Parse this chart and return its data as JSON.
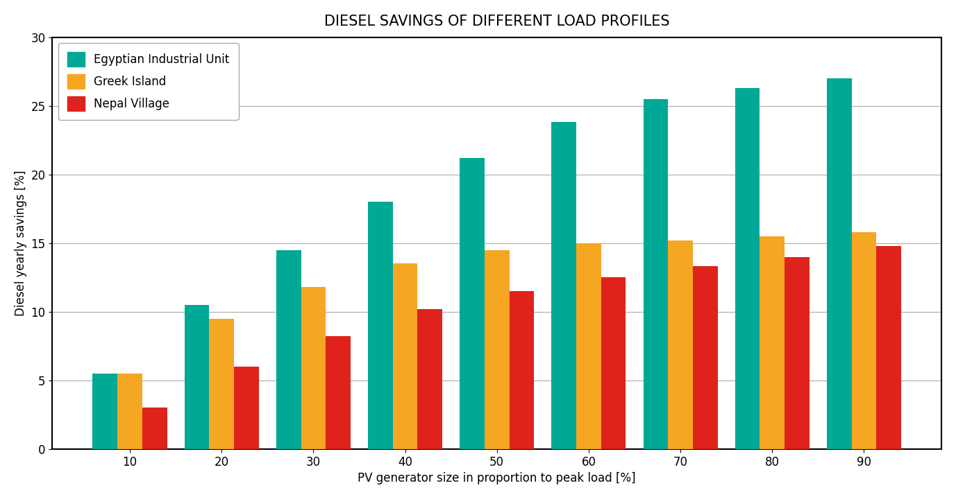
{
  "title": "DIESEL SAVINGS OF DIFFERENT LOAD PROFILES",
  "xlabel": "PV generator size in proportion to peak load [%]",
  "ylabel": "Diesel yearly savings [%]",
  "categories": [
    10,
    20,
    30,
    40,
    50,
    60,
    70,
    80,
    90
  ],
  "series": {
    "Egyptian Industrial Unit": {
      "color": "#00A896",
      "values": [
        5.5,
        10.5,
        14.5,
        18.0,
        21.2,
        23.8,
        25.5,
        26.3,
        27.0
      ]
    },
    "Greek Island": {
      "color": "#F5A623",
      "values": [
        5.5,
        9.5,
        11.8,
        13.5,
        14.5,
        15.0,
        15.2,
        15.5,
        15.8
      ]
    },
    "Nepal Village": {
      "color": "#E0221C",
      "values": [
        3.0,
        6.0,
        8.2,
        10.2,
        11.5,
        12.5,
        13.3,
        14.0,
        14.8
      ]
    }
  },
  "ylim": [
    0,
    30
  ],
  "yticks": [
    0,
    5,
    10,
    15,
    20,
    25,
    30
  ],
  "bar_width": 0.27,
  "background_color": "#ffffff",
  "grid_color": "#aaaaaa",
  "title_fontsize": 15,
  "axis_fontsize": 12,
  "legend_fontsize": 12,
  "tick_fontsize": 12
}
